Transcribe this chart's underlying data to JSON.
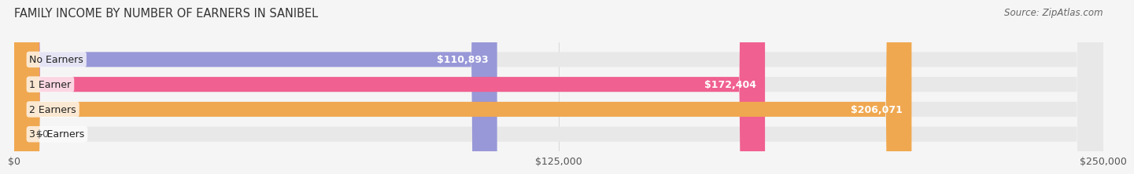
{
  "title": "FAMILY INCOME BY NUMBER OF EARNERS IN SANIBEL",
  "source": "Source: ZipAtlas.com",
  "categories": [
    "No Earners",
    "1 Earner",
    "2 Earners",
    "3+ Earners"
  ],
  "values": [
    110893,
    172404,
    206071,
    0
  ],
  "bar_colors": [
    "#9898d8",
    "#f06090",
    "#f0a850",
    "#f0b8b8"
  ],
  "bar_bg_color": "#e8e8e8",
  "value_labels": [
    "$110,893",
    "$172,404",
    "$206,071",
    "$0"
  ],
  "xlim": [
    0,
    250000
  ],
  "xtick_labels": [
    "$0",
    "$125,000",
    "$250,000"
  ],
  "xtick_values": [
    0,
    125000,
    250000
  ],
  "title_fontsize": 10.5,
  "source_fontsize": 8.5,
  "label_fontsize": 9,
  "value_fontsize": 9,
  "bar_height": 0.6,
  "background_color": "#f5f5f5"
}
